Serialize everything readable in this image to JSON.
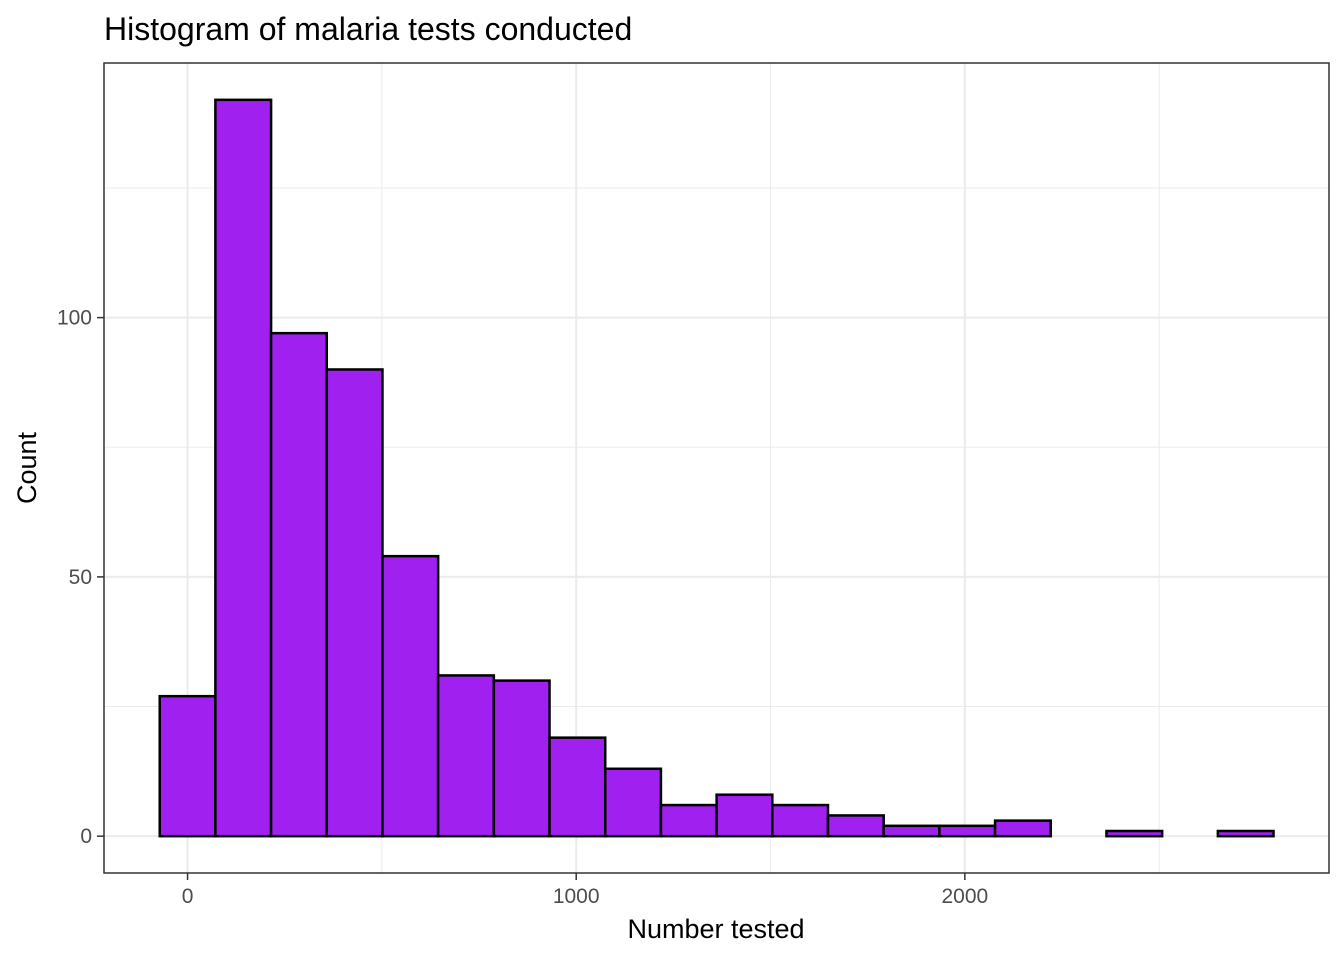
{
  "chart_data": {
    "type": "bar",
    "title": "Histogram of malaria tests conducted",
    "xlabel": "Number tested",
    "ylabel": "Count",
    "bin_width": 143.3,
    "bins": [
      {
        "x0": -71.6,
        "x1": 71.6,
        "count": 27
      },
      {
        "x0": 71.6,
        "x1": 214.9,
        "count": 142
      },
      {
        "x0": 214.9,
        "x1": 358.2,
        "count": 97
      },
      {
        "x0": 358.2,
        "x1": 501.5,
        "count": 90
      },
      {
        "x0": 501.5,
        "x1": 644.8,
        "count": 54
      },
      {
        "x0": 644.8,
        "x1": 788.1,
        "count": 31
      },
      {
        "x0": 788.1,
        "x1": 931.4,
        "count": 30
      },
      {
        "x0": 931.4,
        "x1": 1074.7,
        "count": 19
      },
      {
        "x0": 1074.7,
        "x1": 1218.0,
        "count": 13
      },
      {
        "x0": 1218.0,
        "x1": 1361.3,
        "count": 6
      },
      {
        "x0": 1361.3,
        "x1": 1504.6,
        "count": 8
      },
      {
        "x0": 1504.6,
        "x1": 1647.9,
        "count": 6
      },
      {
        "x0": 1647.9,
        "x1": 1791.2,
        "count": 4
      },
      {
        "x0": 1791.2,
        "x1": 1934.5,
        "count": 2
      },
      {
        "x0": 1934.5,
        "x1": 2077.8,
        "count": 2
      },
      {
        "x0": 2077.8,
        "x1": 2221.1,
        "count": 3
      },
      {
        "x0": 2221.1,
        "x1": 2364.4,
        "count": 0
      },
      {
        "x0": 2364.4,
        "x1": 2507.7,
        "count": 1
      },
      {
        "x0": 2507.7,
        "x1": 2651.0,
        "count": 0
      },
      {
        "x0": 2651.0,
        "x1": 2794.3,
        "count": 1
      }
    ],
    "xlim": [
      -215,
      2937
    ],
    "ylim": [
      -7.1,
      149.1
    ],
    "x_ticks": [
      0,
      1000,
      2000
    ],
    "x_tick_labels": [
      "0",
      "1000",
      "2000"
    ],
    "x_minor_ticks": [
      500,
      1500,
      2500
    ],
    "y_ticks": [
      0,
      50,
      100
    ],
    "y_tick_labels": [
      "0",
      "50",
      "100"
    ],
    "y_minor_ticks": [
      25,
      75,
      125
    ],
    "bar_color": "#A020F0",
    "bar_outline_color": "#000000",
    "grid": true,
    "legend": "none",
    "theme": "bw"
  }
}
